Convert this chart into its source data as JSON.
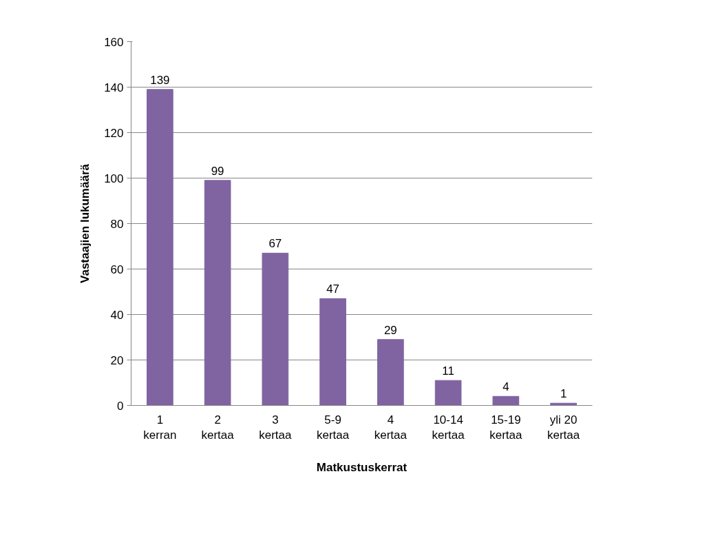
{
  "chart_data": {
    "type": "bar",
    "xlabel": "Matkustuskerrat",
    "ylabel": "Vastaajien lukumäärä",
    "categories": [
      "1 kerran",
      "2 kertaa",
      "3 kertaa",
      "5-9 kertaa",
      "4 kertaa",
      "10-14 kertaa",
      "15-19 kertaa",
      "yli 20 kertaa"
    ],
    "values": [
      139,
      99,
      67,
      47,
      29,
      11,
      4,
      1
    ],
    "color": "#8064a2",
    "ylim": [
      0,
      160
    ],
    "yticks": [
      0,
      20,
      40,
      60,
      80,
      100,
      120,
      140,
      160
    ],
    "grid": "y",
    "data_labels": true
  }
}
